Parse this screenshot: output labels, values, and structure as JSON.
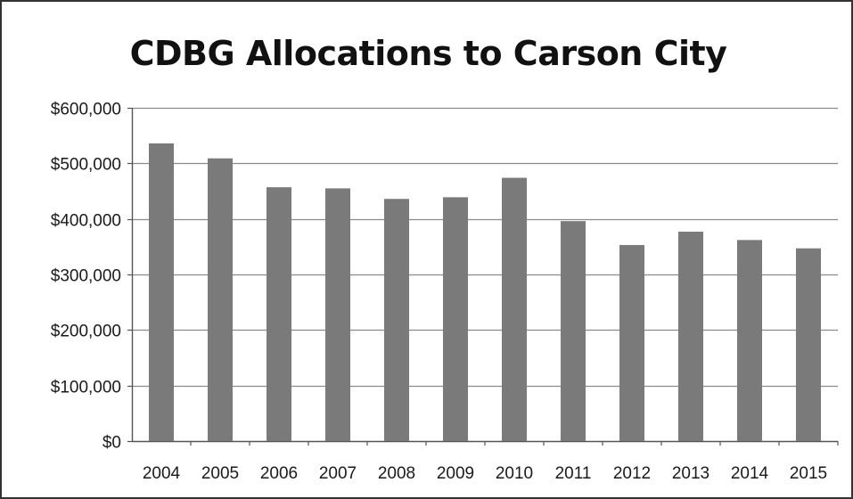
{
  "chart_data": {
    "type": "bar",
    "title": "CDBG Allocations to Carson City",
    "xlabel": "",
    "ylabel": "",
    "categories": [
      "2004",
      "2005",
      "2006",
      "2007",
      "2008",
      "2009",
      "2010",
      "2011",
      "2012",
      "2013",
      "2014",
      "2015"
    ],
    "values": [
      536000,
      509000,
      457000,
      455000,
      436000,
      439000,
      474000,
      396000,
      353000,
      377000,
      362000,
      347000
    ],
    "ylim": [
      0,
      600000
    ],
    "yticks": [
      0,
      100000,
      200000,
      300000,
      400000,
      500000,
      600000
    ],
    "ytick_labels": [
      "$0",
      "$100,000",
      "$200,000",
      "$300,000",
      "$400,000",
      "$500,000",
      "$600,000"
    ],
    "grid": true,
    "legend": "none",
    "bar_color": "#7a7a7a",
    "grid_color": "#8a8a8a"
  }
}
